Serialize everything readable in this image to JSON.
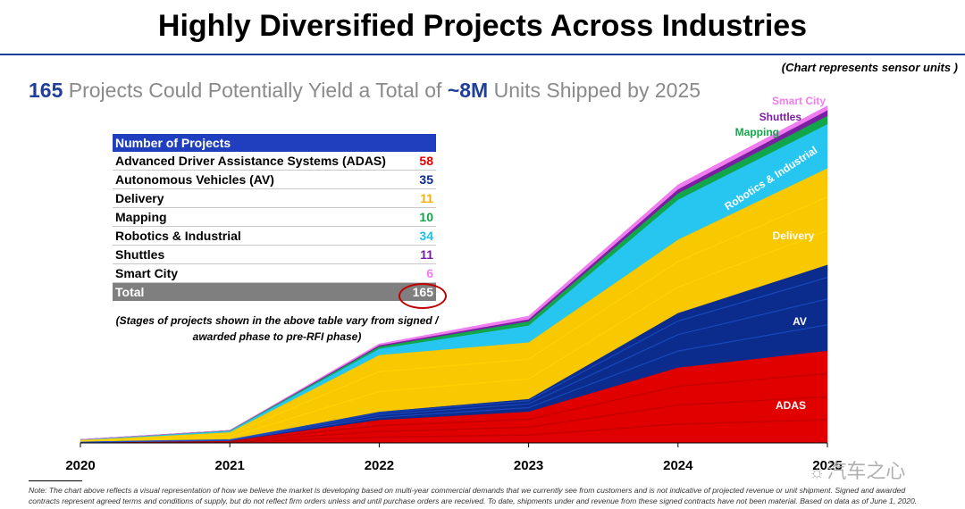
{
  "title": "Highly Diversified Projects Across Industries",
  "subtitle": {
    "part1": "165",
    "part2": " Projects Could Potentially Yield a Total of ",
    "part3": "~8M",
    "part4": " Units Shipped by 2025"
  },
  "note_top": "(Chart represents sensor units )",
  "table": {
    "header": "Number of Projects",
    "rows": [
      {
        "label": "Advanced Driver Assistance Systems (ADAS)",
        "value": "58",
        "color": "#e00000"
      },
      {
        "label": "Autonomous Vehicles (AV)",
        "value": "35",
        "color": "#0b2c8c"
      },
      {
        "label": "Delivery",
        "value": "11",
        "color": "#f2b200"
      },
      {
        "label": "Mapping",
        "value": "10",
        "color": "#12a64a"
      },
      {
        "label": "Robotics & Industrial",
        "value": "34",
        "color": "#1ec0e8"
      },
      {
        "label": "Shuttles",
        "value": "11",
        "color": "#7a1fa2"
      },
      {
        "label": "Smart City",
        "value": "6",
        "color": "#f07cf0"
      }
    ],
    "total_label": "Total",
    "total_value": "165"
  },
  "table_note": {
    "line1": "(Stages of projects shown in the above table vary from signed /",
    "line2": "awarded phase to pre-RFI phase)"
  },
  "chart_data": {
    "type": "area",
    "x": [
      2020,
      2021,
      2022,
      2023,
      2024,
      2025
    ],
    "ylabel": "",
    "ylim": [
      0,
      8
    ],
    "grid": false,
    "legend": "inline labels",
    "series": [
      {
        "name": "ADAS",
        "color": "#e00000",
        "values": [
          0.02,
          0.05,
          0.55,
          0.75,
          1.8,
          2.2
        ]
      },
      {
        "name": "AV",
        "color": "#0b2c8c",
        "values": [
          0.0,
          0.03,
          0.2,
          0.3,
          1.3,
          2.05
        ]
      },
      {
        "name": "Delivery",
        "color": "#f8c800",
        "values": [
          0.05,
          0.18,
          1.35,
          1.35,
          1.75,
          2.3
        ]
      },
      {
        "name": "Robotics & Industrial",
        "color": "#26c6f0",
        "values": [
          0.01,
          0.03,
          0.15,
          0.4,
          0.95,
          1.05
        ]
      },
      {
        "name": "Mapping",
        "color": "#12a64a",
        "values": [
          0.0,
          0.01,
          0.05,
          0.1,
          0.15,
          0.2
        ]
      },
      {
        "name": "Shuttles",
        "color": "#7a1fa2",
        "values": [
          0.0,
          0.0,
          0.03,
          0.05,
          0.1,
          0.13
        ]
      },
      {
        "name": "Smart City",
        "color": "#f07cf0",
        "values": [
          0.0,
          0.0,
          0.03,
          0.07,
          0.1,
          0.1
        ]
      }
    ]
  },
  "footnote": "Note: The chart above reflects a visual representation of how we believe the market is developing based on multi-year commercial demands that we currently see from customers and is not indicative of projected revenue or unit shipment. Signed and awarded contracts represent agreed terms and conditions of supply, but do not reflect firm orders unless and until purchase orders are received. To date, shipments under and revenue from these signed contracts have not been material. Based on data as of June 1, 2020.",
  "watermark": {
    "icon": "wechat-icon",
    "text": "汽车之心"
  }
}
